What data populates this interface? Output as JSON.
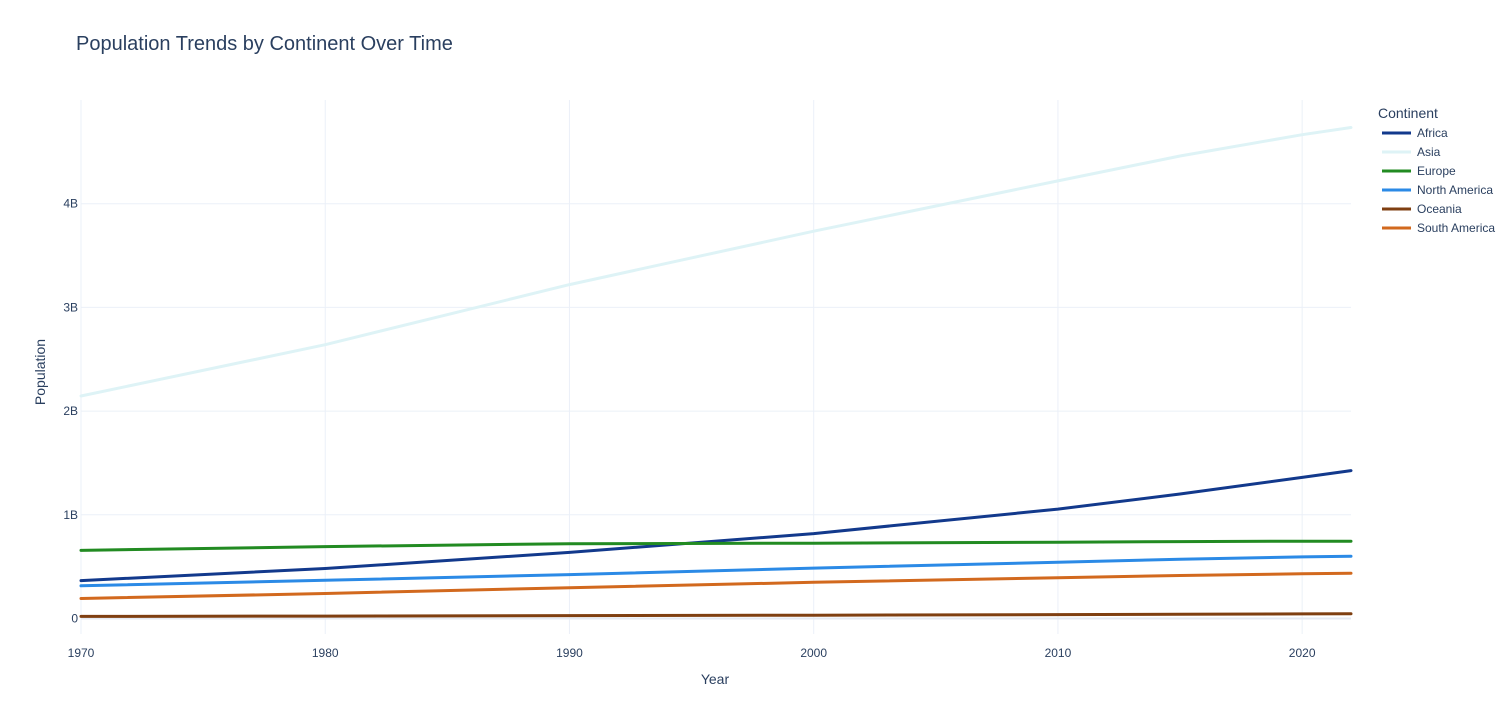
{
  "chart_data": {
    "type": "line",
    "title": "Population Trends by Continent Over Time",
    "xlabel": "Year",
    "ylabel": "Population",
    "xlim": [
      1970,
      2022
    ],
    "ylim": [
      -150000000,
      5000000000
    ],
    "x_ticks": [
      1970,
      1980,
      1990,
      2000,
      2010,
      2020
    ],
    "y_ticks": [
      0,
      1000000000,
      2000000000,
      3000000000,
      4000000000
    ],
    "y_tick_labels": [
      "0",
      "1B",
      "2B",
      "3B",
      "4B"
    ],
    "grid": true,
    "legend": {
      "title": "Continent",
      "placement": "top-right"
    },
    "x": [
      1970,
      1980,
      1990,
      2000,
      2010,
      2015,
      2020,
      2022
    ],
    "series": [
      {
        "name": "Africa",
        "color": "#12398c",
        "values": [
          365000000,
          482000000,
          637000000,
          818000000,
          1055000000,
          1200000000,
          1360000000,
          1426000000
        ]
      },
      {
        "name": "Asia",
        "color": "#def3f6",
        "values": [
          2145000000,
          2640000000,
          3220000000,
          3735000000,
          4220000000,
          4460000000,
          4665000000,
          4735000000
        ]
      },
      {
        "name": "Europe",
        "color": "#228b22",
        "values": [
          656000000,
          693000000,
          721000000,
          726000000,
          735000000,
          741000000,
          745000000,
          744000000
        ]
      },
      {
        "name": "North America",
        "color": "#2b8ae6",
        "values": [
          315000000,
          368000000,
          423000000,
          486000000,
          542000000,
          570000000,
          594000000,
          600000000
        ]
      },
      {
        "name": "Oceania",
        "color": "#7f3f11",
        "values": [
          19700000,
          22900000,
          27000000,
          31400000,
          37100000,
          39700000,
          43900000,
          45000000
        ]
      },
      {
        "name": "South America",
        "color": "#d2691e",
        "values": [
          192000000,
          241000000,
          297000000,
          349000000,
          393000000,
          414000000,
          431000000,
          436000000
        ]
      }
    ]
  }
}
